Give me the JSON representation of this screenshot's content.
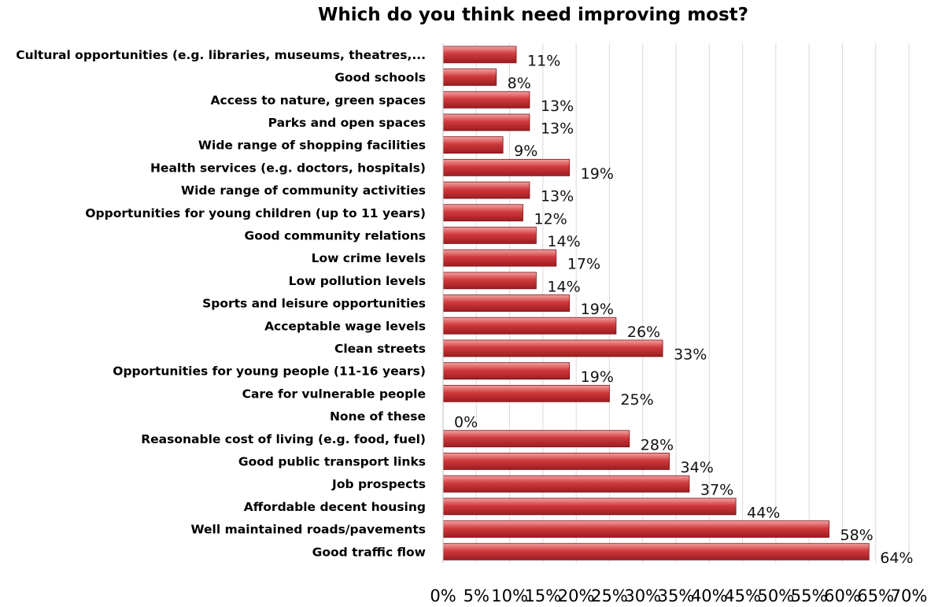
{
  "chart_data": {
    "type": "bar",
    "orientation": "horizontal",
    "title": "Which do you think need improving most?",
    "xlabel": "",
    "ylabel": "",
    "xlim": [
      0,
      70
    ],
    "grid": true,
    "legend": "none",
    "bar_color": "#c0353a",
    "categories": [
      "Cultural opportunities (e.g. libraries, museums, theatres,...",
      "Good schools",
      "Access to nature, green spaces",
      "Parks and open spaces",
      "Wide range of shopping facilities",
      "Health services (e.g. doctors, hospitals)",
      "Wide range of community activities",
      "Opportunities for young children (up to 11 years)",
      "Good community relations",
      "Low crime levels",
      "Low pollution levels",
      "Sports and leisure opportunities",
      "Acceptable wage levels",
      "Clean streets",
      "Opportunities for young people (11-16 years)",
      "Care for vulnerable people",
      "None of these",
      "Reasonable cost of living (e.g. food, fuel)",
      "Good public transport links",
      "Job prospects",
      "Affordable decent housing",
      "Well maintained roads/pavements",
      "Good traffic flow"
    ],
    "values": [
      11,
      8,
      13,
      13,
      9,
      19,
      13,
      12,
      14,
      17,
      14,
      19,
      26,
      33,
      19,
      25,
      0,
      28,
      34,
      37,
      44,
      58,
      64
    ],
    "data_labels": [
      "11%",
      "8%",
      "13%",
      "13%",
      "9%",
      "19%",
      "13%",
      "12%",
      "14%",
      "17%",
      "14%",
      "19%",
      "26%",
      "33%",
      "19%",
      "25%",
      "0%",
      "28%",
      "34%",
      "37%",
      "44%",
      "58%",
      "64%"
    ],
    "ticks": [
      0,
      5,
      10,
      15,
      20,
      25,
      30,
      35,
      40,
      45,
      50,
      55,
      60,
      65,
      70
    ],
    "tick_labels": [
      "0%",
      "5%",
      "10%",
      "15%",
      "20%",
      "25%",
      "30%",
      "35%",
      "40%",
      "45%",
      "50%",
      "55%",
      "60%",
      "65%",
      "70%"
    ]
  }
}
